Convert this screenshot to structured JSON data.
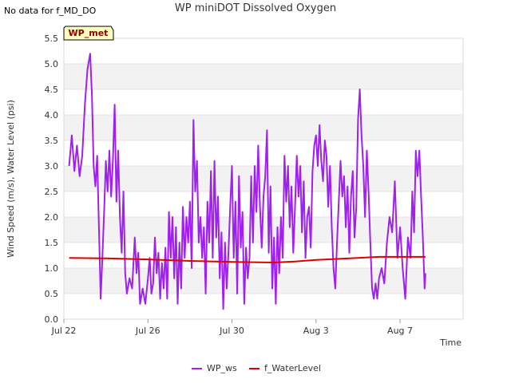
{
  "no_data_note": "No data for f_MD_DO",
  "badge_label": "WP_met",
  "chart_data": {
    "type": "line",
    "title": "WP miniDOT Dissolved Oxygen",
    "xlabel": "Time",
    "ylabel": "Wind Speed (m/s), Water Level (psi)",
    "x_range": [
      "2023-07-22",
      "2023-08-10"
    ],
    "x_ticks": [
      {
        "date": "2023-07-22",
        "label": "Jul 22"
      },
      {
        "date": "2023-07-26",
        "label": "Jul 26"
      },
      {
        "date": "2023-07-30",
        "label": "Jul 30"
      },
      {
        "date": "2023-08-03",
        "label": "Aug 3"
      },
      {
        "date": "2023-08-07",
        "label": "Aug 7"
      }
    ],
    "ylim": [
      0,
      5.5
    ],
    "y_ticks": [
      "0.0",
      "0.5",
      "1.0",
      "1.5",
      "2.0",
      "2.5",
      "3.0",
      "3.5",
      "4.0",
      "4.5",
      "5.0",
      "5.5"
    ],
    "grid": "alternating horizontal bands",
    "legend": "bottom-center",
    "series": [
      {
        "name": "WP_ws",
        "color": "#a020f0",
        "points": [
          [
            "2023-07-22 06:00",
            3.0
          ],
          [
            "2023-07-22 09:00",
            3.6
          ],
          [
            "2023-07-22 12:00",
            2.9
          ],
          [
            "2023-07-22 15:00",
            3.4
          ],
          [
            "2023-07-22 18:00",
            2.8
          ],
          [
            "2023-07-22 21:00",
            3.2
          ],
          [
            "2023-07-23 00:00",
            4.2
          ],
          [
            "2023-07-23 03:00",
            4.9
          ],
          [
            "2023-07-23 06:00",
            5.2
          ],
          [
            "2023-07-23 08:00",
            4.4
          ],
          [
            "2023-07-23 10:00",
            3.0
          ],
          [
            "2023-07-23 12:00",
            2.6
          ],
          [
            "2023-07-23 14:00",
            3.2
          ],
          [
            "2023-07-23 16:00",
            1.8
          ],
          [
            "2023-07-23 18:00",
            0.4
          ],
          [
            "2023-07-23 20:00",
            1.2
          ],
          [
            "2023-07-23 22:00",
            2.1
          ],
          [
            "2023-07-24 00:00",
            3.1
          ],
          [
            "2023-07-24 02:00",
            2.5
          ],
          [
            "2023-07-24 04:00",
            3.3
          ],
          [
            "2023-07-24 06:00",
            2.4
          ],
          [
            "2023-07-24 08:00",
            3.1
          ],
          [
            "2023-07-24 10:00",
            4.2
          ],
          [
            "2023-07-24 12:00",
            2.3
          ],
          [
            "2023-07-24 14:00",
            3.3
          ],
          [
            "2023-07-24 16:00",
            2.0
          ],
          [
            "2023-07-24 18:00",
            1.3
          ],
          [
            "2023-07-24 20:00",
            2.5
          ],
          [
            "2023-07-24 22:00",
            0.9
          ],
          [
            "2023-07-25 00:00",
            0.5
          ],
          [
            "2023-07-25 03:00",
            0.8
          ],
          [
            "2023-07-25 06:00",
            0.6
          ],
          [
            "2023-07-25 09:00",
            1.6
          ],
          [
            "2023-07-25 11:00",
            0.9
          ],
          [
            "2023-07-25 13:00",
            1.3
          ],
          [
            "2023-07-25 15:00",
            0.3
          ],
          [
            "2023-07-25 18:00",
            0.6
          ],
          [
            "2023-07-25 21:00",
            0.3
          ],
          [
            "2023-07-26 00:00",
            0.8
          ],
          [
            "2023-07-26 02:00",
            1.2
          ],
          [
            "2023-07-26 04:00",
            0.5
          ],
          [
            "2023-07-26 06:00",
            0.7
          ],
          [
            "2023-07-26 08:00",
            1.6
          ],
          [
            "2023-07-26 10:00",
            0.9
          ],
          [
            "2023-07-26 12:00",
            1.3
          ],
          [
            "2023-07-26 14:00",
            0.4
          ],
          [
            "2023-07-26 16:00",
            1.1
          ],
          [
            "2023-07-26 18:00",
            0.6
          ],
          [
            "2023-07-26 20:00",
            1.4
          ],
          [
            "2023-07-26 22:00",
            0.4
          ],
          [
            "2023-07-27 00:00",
            2.1
          ],
          [
            "2023-07-27 02:00",
            1.2
          ],
          [
            "2023-07-27 04:00",
            2.0
          ],
          [
            "2023-07-27 06:00",
            0.8
          ],
          [
            "2023-07-27 08:00",
            1.8
          ],
          [
            "2023-07-27 10:00",
            0.3
          ],
          [
            "2023-07-27 12:00",
            1.5
          ],
          [
            "2023-07-27 14:00",
            0.6
          ],
          [
            "2023-07-27 16:00",
            2.2
          ],
          [
            "2023-07-27 18:00",
            1.2
          ],
          [
            "2023-07-27 20:00",
            2.0
          ],
          [
            "2023-07-27 22:00",
            1.5
          ],
          [
            "2023-07-28 00:00",
            2.3
          ],
          [
            "2023-07-28 02:00",
            1.0
          ],
          [
            "2023-07-28 04:00",
            3.9
          ],
          [
            "2023-07-28 06:00",
            2.5
          ],
          [
            "2023-07-28 08:00",
            3.1
          ],
          [
            "2023-07-28 10:00",
            1.5
          ],
          [
            "2023-07-28 12:00",
            2.0
          ],
          [
            "2023-07-28 14:00",
            1.2
          ],
          [
            "2023-07-28 16:00",
            1.8
          ],
          [
            "2023-07-28 18:00",
            0.5
          ],
          [
            "2023-07-28 20:00",
            2.3
          ],
          [
            "2023-07-28 22:00",
            1.5
          ],
          [
            "2023-07-29 00:00",
            2.9
          ],
          [
            "2023-07-29 02:00",
            1.2
          ],
          [
            "2023-07-29 04:00",
            3.1
          ],
          [
            "2023-07-29 06:00",
            1.6
          ],
          [
            "2023-07-29 08:00",
            2.4
          ],
          [
            "2023-07-29 10:00",
            0.8
          ],
          [
            "2023-07-29 12:00",
            1.7
          ],
          [
            "2023-07-29 14:00",
            0.2
          ],
          [
            "2023-07-29 16:00",
            1.5
          ],
          [
            "2023-07-29 18:00",
            0.6
          ],
          [
            "2023-07-29 20:00",
            1.3
          ],
          [
            "2023-07-29 22:00",
            2.2
          ],
          [
            "2023-07-30 00:00",
            3.0
          ],
          [
            "2023-07-30 02:00",
            1.2
          ],
          [
            "2023-07-30 04:00",
            2.3
          ],
          [
            "2023-07-30 06:00",
            0.5
          ],
          [
            "2023-07-30 08:00",
            2.8
          ],
          [
            "2023-07-30 10:00",
            1.4
          ],
          [
            "2023-07-30 12:00",
            2.1
          ],
          [
            "2023-07-30 14:00",
            0.3
          ],
          [
            "2023-07-30 16:00",
            1.4
          ],
          [
            "2023-07-30 18:00",
            0.8
          ],
          [
            "2023-07-30 20:00",
            1.2
          ],
          [
            "2023-07-30 22:00",
            2.8
          ],
          [
            "2023-07-31 00:00",
            1.5
          ],
          [
            "2023-07-31 02:00",
            3.0
          ],
          [
            "2023-07-31 04:00",
            2.1
          ],
          [
            "2023-07-31 06:00",
            3.4
          ],
          [
            "2023-07-31 08:00",
            2.2
          ],
          [
            "2023-07-31 10:00",
            1.4
          ],
          [
            "2023-07-31 12:00",
            2.4
          ],
          [
            "2023-07-31 14:00",
            2.8
          ],
          [
            "2023-07-31 16:00",
            3.7
          ],
          [
            "2023-07-31 18:00",
            1.3
          ],
          [
            "2023-07-31 20:00",
            2.6
          ],
          [
            "2023-07-31 22:00",
            0.6
          ],
          [
            "2023-08-01 00:00",
            1.6
          ],
          [
            "2023-08-01 02:00",
            0.3
          ],
          [
            "2023-08-01 04:00",
            1.8
          ],
          [
            "2023-08-01 06:00",
            0.9
          ],
          [
            "2023-08-01 08:00",
            2.0
          ],
          [
            "2023-08-01 10:00",
            1.2
          ],
          [
            "2023-08-01 12:00",
            3.2
          ],
          [
            "2023-08-01 14:00",
            2.3
          ],
          [
            "2023-08-01 16:00",
            3.0
          ],
          [
            "2023-08-01 18:00",
            1.8
          ],
          [
            "2023-08-01 20:00",
            2.6
          ],
          [
            "2023-08-01 22:00",
            1.3
          ],
          [
            "2023-08-02 00:00",
            2.2
          ],
          [
            "2023-08-02 02:00",
            3.2
          ],
          [
            "2023-08-02 04:00",
            2.4
          ],
          [
            "2023-08-02 06:00",
            3.0
          ],
          [
            "2023-08-02 08:00",
            1.7
          ],
          [
            "2023-08-02 10:00",
            2.7
          ],
          [
            "2023-08-02 12:00",
            1.2
          ],
          [
            "2023-08-02 14:00",
            2.0
          ],
          [
            "2023-08-02 16:00",
            2.2
          ],
          [
            "2023-08-02 18:00",
            1.4
          ],
          [
            "2023-08-02 20:00",
            2.9
          ],
          [
            "2023-08-02 22:00",
            3.4
          ],
          [
            "2023-08-03 00:00",
            3.6
          ],
          [
            "2023-08-03 02:00",
            3.0
          ],
          [
            "2023-08-03 04:00",
            3.8
          ],
          [
            "2023-08-03 06:00",
            3.1
          ],
          [
            "2023-08-03 08:00",
            2.7
          ],
          [
            "2023-08-03 10:00",
            3.5
          ],
          [
            "2023-08-03 12:00",
            3.2
          ],
          [
            "2023-08-03 14:00",
            2.2
          ],
          [
            "2023-08-03 16:00",
            3.0
          ],
          [
            "2023-08-03 18:00",
            1.8
          ],
          [
            "2023-08-03 20:00",
            1.0
          ],
          [
            "2023-08-03 22:00",
            0.6
          ],
          [
            "2023-08-04 00:00",
            1.5
          ],
          [
            "2023-08-04 02:00",
            2.3
          ],
          [
            "2023-08-04 04:00",
            3.1
          ],
          [
            "2023-08-04 06:00",
            2.4
          ],
          [
            "2023-08-04 08:00",
            2.8
          ],
          [
            "2023-08-04 10:00",
            1.8
          ],
          [
            "2023-08-04 12:00",
            2.6
          ],
          [
            "2023-08-04 14:00",
            1.3
          ],
          [
            "2023-08-04 16:00",
            2.4
          ],
          [
            "2023-08-04 18:00",
            2.9
          ],
          [
            "2023-08-04 20:00",
            1.6
          ],
          [
            "2023-08-04 22:00",
            2.2
          ],
          [
            "2023-08-05 00:00",
            3.9
          ],
          [
            "2023-08-05 02:00",
            4.5
          ],
          [
            "2023-08-05 04:00",
            3.6
          ],
          [
            "2023-08-05 06:00",
            3.0
          ],
          [
            "2023-08-05 08:00",
            2.0
          ],
          [
            "2023-08-05 10:00",
            3.3
          ],
          [
            "2023-08-05 12:00",
            2.5
          ],
          [
            "2023-08-05 14:00",
            1.5
          ],
          [
            "2023-08-05 16:00",
            0.6
          ],
          [
            "2023-08-05 18:00",
            0.4
          ],
          [
            "2023-08-05 20:00",
            0.7
          ],
          [
            "2023-08-05 22:00",
            0.4
          ],
          [
            "2023-08-06 00:00",
            0.8
          ],
          [
            "2023-08-06 03:00",
            1.0
          ],
          [
            "2023-08-06 06:00",
            0.7
          ],
          [
            "2023-08-06 09:00",
            1.5
          ],
          [
            "2023-08-06 12:00",
            2.0
          ],
          [
            "2023-08-06 15:00",
            1.7
          ],
          [
            "2023-08-06 18:00",
            2.7
          ],
          [
            "2023-08-06 21:00",
            1.2
          ],
          [
            "2023-08-07 00:00",
            1.8
          ],
          [
            "2023-08-07 03:00",
            1.0
          ],
          [
            "2023-08-07 06:00",
            0.4
          ],
          [
            "2023-08-07 09:00",
            1.6
          ],
          [
            "2023-08-07 12:00",
            1.2
          ],
          [
            "2023-08-07 14:00",
            2.5
          ],
          [
            "2023-08-07 16:00",
            1.7
          ],
          [
            "2023-08-07 18:00",
            3.3
          ],
          [
            "2023-08-07 20:00",
            2.8
          ],
          [
            "2023-08-07 22:00",
            3.3
          ],
          [
            "2023-08-08 00:00",
            2.4
          ],
          [
            "2023-08-08 02:00",
            1.6
          ],
          [
            "2023-08-08 04:00",
            0.6
          ],
          [
            "2023-08-08 05:00",
            0.9
          ]
        ]
      },
      {
        "name": "f_WaterLevel",
        "color": "#dd0000",
        "points": [
          [
            "2023-07-22 06:00",
            1.2
          ],
          [
            "2023-07-24 00:00",
            1.19
          ],
          [
            "2023-07-26 00:00",
            1.17
          ],
          [
            "2023-07-28 00:00",
            1.14
          ],
          [
            "2023-07-30 00:00",
            1.12
          ],
          [
            "2023-08-01 00:00",
            1.11
          ],
          [
            "2023-08-02 00:00",
            1.13
          ],
          [
            "2023-08-03 00:00",
            1.16
          ],
          [
            "2023-08-04 00:00",
            1.18
          ],
          [
            "2023-08-05 00:00",
            1.2
          ],
          [
            "2023-08-06 00:00",
            1.22
          ],
          [
            "2023-08-07 00:00",
            1.22
          ],
          [
            "2023-08-08 05:00",
            1.22
          ]
        ]
      }
    ]
  }
}
